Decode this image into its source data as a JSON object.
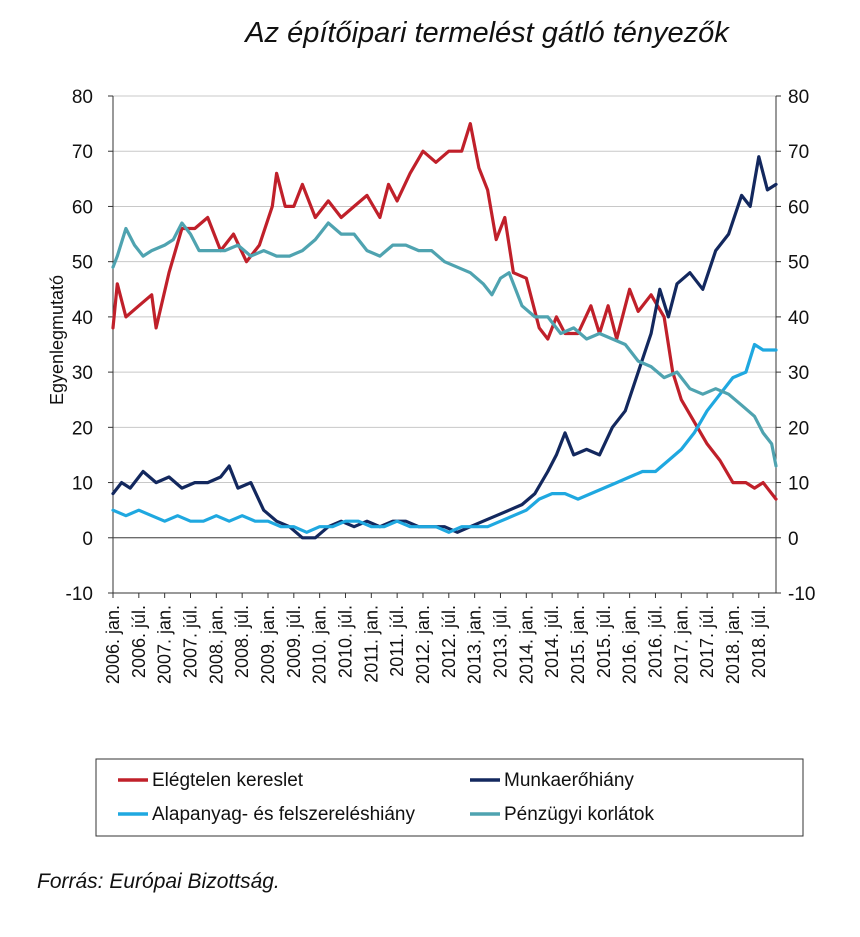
{
  "chart_data": {
    "type": "line",
    "title": "Az építőipari termelést gátló tényezők",
    "ylabel": "Egyenlegmutató",
    "ylim": [
      -10,
      80
    ],
    "yticks": [
      -10,
      0,
      10,
      20,
      30,
      40,
      50,
      60,
      70,
      80
    ],
    "yticks_right": [
      -10,
      0,
      10,
      20,
      30,
      40,
      50,
      60,
      70,
      80
    ],
    "grid": true,
    "legend": "bottom",
    "source": "Forrás: Európai Bizottság.",
    "x_start": "2006-01",
    "x_end": "2018-11",
    "x_tick_labels": [
      "2006. jan.",
      "2006. júl.",
      "2007. jan.",
      "2007. júl.",
      "2008. jan.",
      "2008. júl.",
      "2009. jan.",
      "2009. júl.",
      "2010. jan.",
      "2010. júl.",
      "2011. jan.",
      "2011. júl.",
      "2012. jan.",
      "2012. júl.",
      "2013. jan.",
      "2013. júl.",
      "2014. jan.",
      "2014. júl.",
      "2015. jan.",
      "2015. júl.",
      "2016. jan.",
      "2016. júl.",
      "2017. jan.",
      "2017. júl.",
      "2018. jan.",
      "2018. júl."
    ],
    "series": [
      {
        "name": "Elégtelen kereslet",
        "color": "#c0202a",
        "points": [
          [
            "2006-01",
            38
          ],
          [
            "2006-02",
            46
          ],
          [
            "2006-04",
            40
          ],
          [
            "2006-07",
            42
          ],
          [
            "2006-10",
            44
          ],
          [
            "2006-11",
            38
          ],
          [
            "2007-02",
            48
          ],
          [
            "2007-05",
            56
          ],
          [
            "2007-08",
            56
          ],
          [
            "2007-11",
            58
          ],
          [
            "2008-02",
            52
          ],
          [
            "2008-05",
            55
          ],
          [
            "2008-08",
            50
          ],
          [
            "2008-11",
            53
          ],
          [
            "2009-02",
            60
          ],
          [
            "2009-03",
            66
          ],
          [
            "2009-05",
            60
          ],
          [
            "2009-07",
            60
          ],
          [
            "2009-09",
            64
          ],
          [
            "2009-12",
            58
          ],
          [
            "2010-03",
            61
          ],
          [
            "2010-06",
            58
          ],
          [
            "2010-09",
            60
          ],
          [
            "2010-12",
            62
          ],
          [
            "2011-03",
            58
          ],
          [
            "2011-05",
            64
          ],
          [
            "2011-07",
            61
          ],
          [
            "2011-10",
            66
          ],
          [
            "2012-01",
            70
          ],
          [
            "2012-04",
            68
          ],
          [
            "2012-07",
            70
          ],
          [
            "2012-10",
            70
          ],
          [
            "2012-12",
            75
          ],
          [
            "2013-02",
            67
          ],
          [
            "2013-04",
            63
          ],
          [
            "2013-06",
            54
          ],
          [
            "2013-08",
            58
          ],
          [
            "2013-10",
            48
          ],
          [
            "2014-01",
            47
          ],
          [
            "2014-04",
            38
          ],
          [
            "2014-06",
            36
          ],
          [
            "2014-08",
            40
          ],
          [
            "2014-10",
            37
          ],
          [
            "2015-01",
            37
          ],
          [
            "2015-04",
            42
          ],
          [
            "2015-06",
            37
          ],
          [
            "2015-08",
            42
          ],
          [
            "2015-10",
            36
          ],
          [
            "2016-01",
            45
          ],
          [
            "2016-03",
            41
          ],
          [
            "2016-06",
            44
          ],
          [
            "2016-09",
            40
          ],
          [
            "2016-11",
            30
          ],
          [
            "2017-01",
            25
          ],
          [
            "2017-04",
            21
          ],
          [
            "2017-07",
            17
          ],
          [
            "2017-10",
            14
          ],
          [
            "2018-01",
            10
          ],
          [
            "2018-04",
            10
          ],
          [
            "2018-06",
            9
          ],
          [
            "2018-08",
            10
          ],
          [
            "2018-11",
            7
          ]
        ]
      },
      {
        "name": "Munkaerőhiány",
        "color": "#13285e",
        "points": [
          [
            "2006-01",
            8
          ],
          [
            "2006-03",
            10
          ],
          [
            "2006-05",
            9
          ],
          [
            "2006-08",
            12
          ],
          [
            "2006-11",
            10
          ],
          [
            "2007-02",
            11
          ],
          [
            "2007-05",
            9
          ],
          [
            "2007-08",
            10
          ],
          [
            "2007-11",
            10
          ],
          [
            "2008-02",
            11
          ],
          [
            "2008-04",
            13
          ],
          [
            "2008-06",
            9
          ],
          [
            "2008-09",
            10
          ],
          [
            "2008-12",
            5
          ],
          [
            "2009-03",
            3
          ],
          [
            "2009-06",
            2
          ],
          [
            "2009-09",
            0
          ],
          [
            "2009-12",
            0
          ],
          [
            "2010-03",
            2
          ],
          [
            "2010-06",
            3
          ],
          [
            "2010-09",
            2
          ],
          [
            "2010-12",
            3
          ],
          [
            "2011-03",
            2
          ],
          [
            "2011-06",
            3
          ],
          [
            "2011-09",
            3
          ],
          [
            "2011-12",
            2
          ],
          [
            "2012-03",
            2
          ],
          [
            "2012-06",
            2
          ],
          [
            "2012-09",
            1
          ],
          [
            "2012-12",
            2
          ],
          [
            "2013-03",
            3
          ],
          [
            "2013-06",
            4
          ],
          [
            "2013-09",
            5
          ],
          [
            "2013-12",
            6
          ],
          [
            "2014-03",
            8
          ],
          [
            "2014-06",
            12
          ],
          [
            "2014-08",
            15
          ],
          [
            "2014-10",
            19
          ],
          [
            "2014-12",
            15
          ],
          [
            "2015-03",
            16
          ],
          [
            "2015-06",
            15
          ],
          [
            "2015-09",
            20
          ],
          [
            "2015-12",
            23
          ],
          [
            "2016-03",
            30
          ],
          [
            "2016-06",
            37
          ],
          [
            "2016-08",
            45
          ],
          [
            "2016-10",
            40
          ],
          [
            "2016-12",
            46
          ],
          [
            "2017-03",
            48
          ],
          [
            "2017-06",
            45
          ],
          [
            "2017-09",
            52
          ],
          [
            "2017-12",
            55
          ],
          [
            "2018-03",
            62
          ],
          [
            "2018-05",
            60
          ],
          [
            "2018-07",
            69
          ],
          [
            "2018-09",
            63
          ],
          [
            "2018-11",
            64
          ]
        ]
      },
      {
        "name": "Alapanyag- és felszereléshiány",
        "color": "#1fa8e0",
        "points": [
          [
            "2006-01",
            5
          ],
          [
            "2006-04",
            4
          ],
          [
            "2006-07",
            5
          ],
          [
            "2006-10",
            4
          ],
          [
            "2007-01",
            3
          ],
          [
            "2007-04",
            4
          ],
          [
            "2007-07",
            3
          ],
          [
            "2007-10",
            3
          ],
          [
            "2008-01",
            4
          ],
          [
            "2008-04",
            3
          ],
          [
            "2008-07",
            4
          ],
          [
            "2008-10",
            3
          ],
          [
            "2009-01",
            3
          ],
          [
            "2009-04",
            2
          ],
          [
            "2009-07",
            2
          ],
          [
            "2009-10",
            1
          ],
          [
            "2010-01",
            2
          ],
          [
            "2010-04",
            2
          ],
          [
            "2010-07",
            3
          ],
          [
            "2010-10",
            3
          ],
          [
            "2011-01",
            2
          ],
          [
            "2011-04",
            2
          ],
          [
            "2011-07",
            3
          ],
          [
            "2011-10",
            2
          ],
          [
            "2012-01",
            2
          ],
          [
            "2012-04",
            2
          ],
          [
            "2012-07",
            1
          ],
          [
            "2012-10",
            2
          ],
          [
            "2013-01",
            2
          ],
          [
            "2013-04",
            2
          ],
          [
            "2013-07",
            3
          ],
          [
            "2013-10",
            4
          ],
          [
            "2014-01",
            5
          ],
          [
            "2014-04",
            7
          ],
          [
            "2014-07",
            8
          ],
          [
            "2014-10",
            8
          ],
          [
            "2015-01",
            7
          ],
          [
            "2015-04",
            8
          ],
          [
            "2015-07",
            9
          ],
          [
            "2015-10",
            10
          ],
          [
            "2016-01",
            11
          ],
          [
            "2016-04",
            12
          ],
          [
            "2016-07",
            12
          ],
          [
            "2016-10",
            14
          ],
          [
            "2017-01",
            16
          ],
          [
            "2017-04",
            19
          ],
          [
            "2017-07",
            23
          ],
          [
            "2017-10",
            26
          ],
          [
            "2018-01",
            29
          ],
          [
            "2018-04",
            30
          ],
          [
            "2018-06",
            35
          ],
          [
            "2018-08",
            34
          ],
          [
            "2018-11",
            34
          ]
        ]
      },
      {
        "name": "Pénzügyi korlátok",
        "color": "#4fa3b0",
        "points": [
          [
            "2006-01",
            49
          ],
          [
            "2006-02",
            51
          ],
          [
            "2006-04",
            56
          ],
          [
            "2006-06",
            53
          ],
          [
            "2006-08",
            51
          ],
          [
            "2006-10",
            52
          ],
          [
            "2007-01",
            53
          ],
          [
            "2007-03",
            54
          ],
          [
            "2007-05",
            57
          ],
          [
            "2007-07",
            55
          ],
          [
            "2007-09",
            52
          ],
          [
            "2007-12",
            52
          ],
          [
            "2008-03",
            52
          ],
          [
            "2008-06",
            53
          ],
          [
            "2008-09",
            51
          ],
          [
            "2008-12",
            52
          ],
          [
            "2009-03",
            51
          ],
          [
            "2009-06",
            51
          ],
          [
            "2009-09",
            52
          ],
          [
            "2009-12",
            54
          ],
          [
            "2010-03",
            57
          ],
          [
            "2010-06",
            55
          ],
          [
            "2010-09",
            55
          ],
          [
            "2010-12",
            52
          ],
          [
            "2011-03",
            51
          ],
          [
            "2011-06",
            53
          ],
          [
            "2011-09",
            53
          ],
          [
            "2011-12",
            52
          ],
          [
            "2012-03",
            52
          ],
          [
            "2012-06",
            50
          ],
          [
            "2012-09",
            49
          ],
          [
            "2012-12",
            48
          ],
          [
            "2013-03",
            46
          ],
          [
            "2013-05",
            44
          ],
          [
            "2013-07",
            47
          ],
          [
            "2013-09",
            48
          ],
          [
            "2013-12",
            42
          ],
          [
            "2014-03",
            40
          ],
          [
            "2014-06",
            40
          ],
          [
            "2014-09",
            37
          ],
          [
            "2014-12",
            38
          ],
          [
            "2015-03",
            36
          ],
          [
            "2015-06",
            37
          ],
          [
            "2015-09",
            36
          ],
          [
            "2015-12",
            35
          ],
          [
            "2016-03",
            32
          ],
          [
            "2016-06",
            31
          ],
          [
            "2016-09",
            29
          ],
          [
            "2016-12",
            30
          ],
          [
            "2017-03",
            27
          ],
          [
            "2017-06",
            26
          ],
          [
            "2017-09",
            27
          ],
          [
            "2017-12",
            26
          ],
          [
            "2018-03",
            24
          ],
          [
            "2018-06",
            22
          ],
          [
            "2018-08",
            19
          ],
          [
            "2018-10",
            17
          ],
          [
            "2018-11",
            13
          ]
        ]
      }
    ]
  }
}
